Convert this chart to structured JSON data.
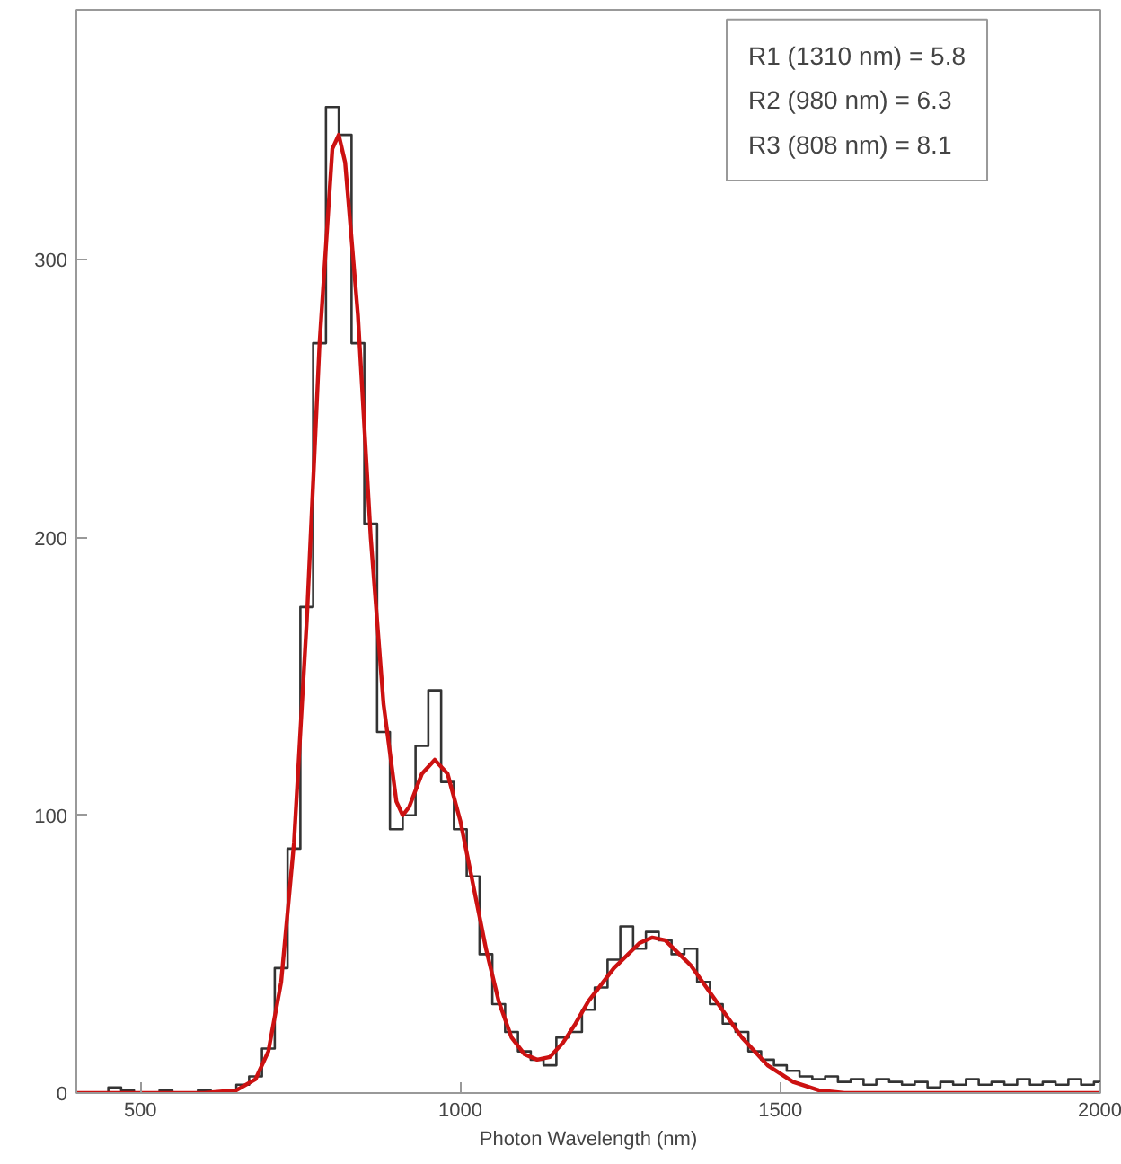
{
  "chart_data": {
    "type": "line",
    "xlabel": "Photon Wavelength (nm)",
    "xlim": [
      400,
      2000
    ],
    "ylim": [
      0,
      390
    ],
    "xticks": [
      500,
      1000,
      1500,
      2000
    ],
    "yticks": [
      0,
      100,
      200,
      300
    ],
    "grid": false,
    "annotations": [
      "R1 (1310 nm) = 5.8",
      "R2 (980 nm) = 6.3",
      "R3 (808 nm) = 8.1"
    ],
    "series": [
      {
        "type": "step",
        "color": "#333333",
        "x": [
          400,
          420,
          440,
          460,
          480,
          500,
          520,
          540,
          560,
          580,
          600,
          620,
          640,
          660,
          680,
          700,
          720,
          740,
          760,
          780,
          800,
          820,
          840,
          860,
          880,
          900,
          920,
          940,
          960,
          980,
          1000,
          1020,
          1040,
          1060,
          1080,
          1100,
          1120,
          1140,
          1160,
          1180,
          1200,
          1220,
          1240,
          1260,
          1280,
          1300,
          1320,
          1340,
          1360,
          1380,
          1400,
          1420,
          1440,
          1460,
          1480,
          1500,
          1520,
          1540,
          1560,
          1580,
          1600,
          1620,
          1640,
          1660,
          1680,
          1700,
          1720,
          1740,
          1760,
          1780,
          1800,
          1820,
          1840,
          1860,
          1880,
          1900,
          1920,
          1940,
          1960,
          1980,
          2000
        ],
        "values": [
          0,
          0,
          0,
          2,
          1,
          0,
          0,
          1,
          0,
          0,
          1,
          0,
          1,
          3,
          6,
          16,
          45,
          88,
          175,
          270,
          355,
          345,
          270,
          205,
          130,
          95,
          100,
          125,
          145,
          112,
          95,
          78,
          50,
          32,
          22,
          15,
          12,
          10,
          20,
          22,
          30,
          38,
          48,
          60,
          52,
          58,
          55,
          50,
          52,
          40,
          32,
          25,
          22,
          15,
          12,
          10,
          8,
          6,
          5,
          6,
          4,
          5,
          3,
          5,
          4,
          3,
          4,
          2,
          4,
          3,
          5,
          3,
          4,
          3,
          5,
          3,
          4,
          3,
          5,
          3,
          4
        ]
      },
      {
        "color": "#cc1111",
        "x": [
          400,
          600,
          650,
          680,
          700,
          720,
          740,
          760,
          780,
          800,
          810,
          820,
          840,
          860,
          880,
          900,
          910,
          920,
          940,
          960,
          980,
          1000,
          1020,
          1040,
          1060,
          1080,
          1100,
          1120,
          1140,
          1160,
          1180,
          1200,
          1240,
          1280,
          1300,
          1320,
          1360,
          1400,
          1440,
          1480,
          1520,
          1560,
          1600,
          2000
        ],
        "values": [
          0,
          0,
          1,
          5,
          15,
          40,
          90,
          170,
          270,
          340,
          345,
          335,
          280,
          200,
          140,
          105,
          100,
          103,
          115,
          120,
          115,
          98,
          75,
          52,
          33,
          20,
          14,
          12,
          13,
          18,
          25,
          33,
          45,
          54,
          56,
          55,
          46,
          33,
          20,
          10,
          4,
          1,
          0,
          0
        ]
      }
    ]
  }
}
